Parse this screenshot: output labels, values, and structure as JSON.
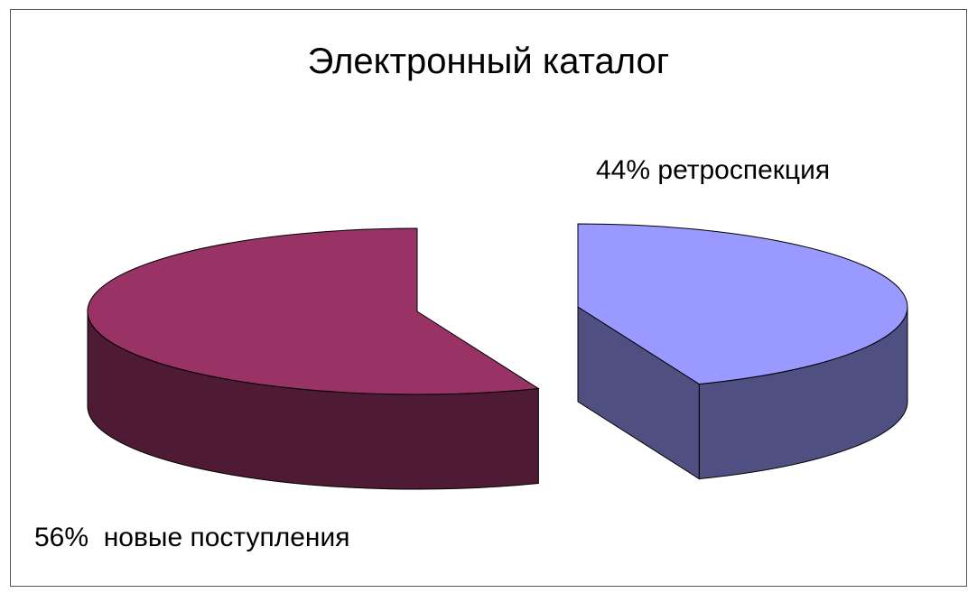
{
  "chart_data": {
    "type": "pie",
    "title": "Электронный каталог",
    "slices": [
      {
        "label": "новые поступления",
        "value": 56,
        "display": "56%  новые поступления",
        "color_top": "#993366",
        "color_side": "#4f1a33"
      },
      {
        "label": "ретроспекция",
        "value": 44,
        "display": "44% ретроспекция",
        "color_top": "#9999ff",
        "color_side": "#4f4f82"
      }
    ],
    "style": "3d-exploded",
    "legend": "none"
  }
}
